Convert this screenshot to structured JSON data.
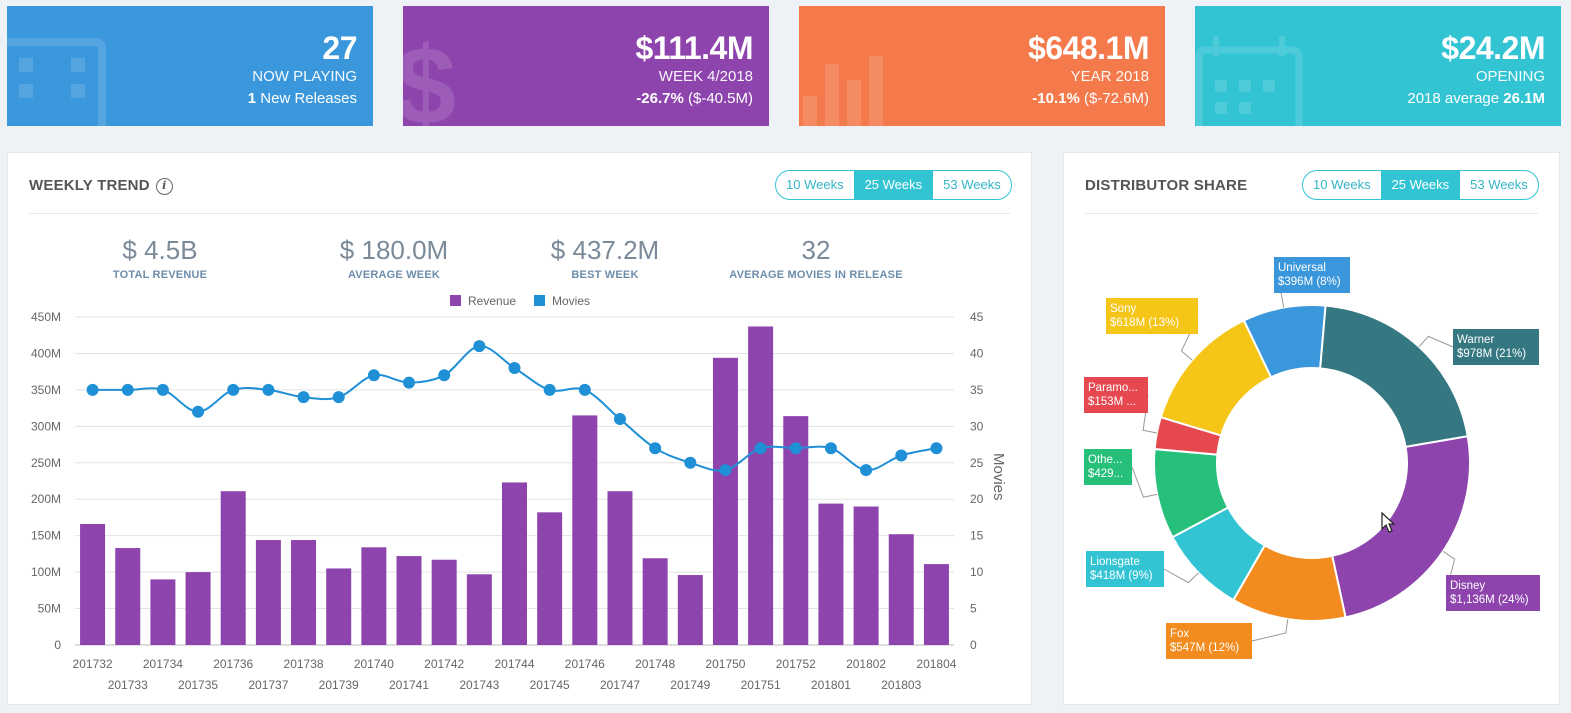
{
  "kpis": [
    {
      "value": "27",
      "label": "NOW PLAYING",
      "sub_bold": "1",
      "sub_text": " New Releases"
    },
    {
      "value": "$111.4M",
      "label": "WEEK 4/2018",
      "sub_bold": "-26.7%",
      "sub_text": " ($-40.5M)"
    },
    {
      "value": "$648.1M",
      "label": "YEAR 2018",
      "sub_bold": "-10.1%",
      "sub_text": " ($-72.6M)"
    },
    {
      "value": "$24.2M",
      "label": "OPENING",
      "sub_text": "2018 average ",
      "sub_bold": "26.1M"
    }
  ],
  "trend": {
    "title": "WEEKLY TREND",
    "info_glyph": "i",
    "ranges": [
      "10 Weeks",
      "25 Weeks",
      "53 Weeks"
    ],
    "active_range": "25 Weeks",
    "stats": [
      {
        "value": "$ 4.5B",
        "label": "TOTAL REVENUE"
      },
      {
        "value": "$ 180.0M",
        "label": "AVERAGE WEEK"
      },
      {
        "value": "$ 437.2M",
        "label": "BEST WEEK"
      },
      {
        "value": "32",
        "label": "AVERAGE MOVIES IN RELEASE"
      }
    ]
  },
  "share": {
    "title": "DISTRIBUTOR SHARE",
    "ranges": [
      "10 Weeks",
      "25 Weeks",
      "53 Weeks"
    ],
    "active_range": "25 Weeks"
  },
  "chart_data": [
    {
      "type": "bar",
      "title": "WEEKLY TREND",
      "categories": [
        "201732",
        "201733",
        "201734",
        "201735",
        "201736",
        "201737",
        "201738",
        "201739",
        "201740",
        "201741",
        "201742",
        "201743",
        "201744",
        "201745",
        "201746",
        "201747",
        "201748",
        "201749",
        "201750",
        "201751",
        "201752",
        "201801",
        "201802",
        "201803",
        "201804"
      ],
      "series": [
        {
          "name": "Revenue",
          "type": "bar",
          "axis": "left",
          "color": "#8e44ad",
          "values": [
            166,
            133,
            90,
            100,
            211,
            144,
            144,
            105,
            134,
            122,
            117,
            97,
            223,
            182,
            315,
            211,
            119,
            96,
            394,
            437,
            314,
            194,
            190,
            152,
            111
          ]
        },
        {
          "name": "Movies",
          "type": "line",
          "axis": "right",
          "color": "#1f8fd6",
          "values": [
            35,
            35,
            35,
            32,
            35,
            35,
            34,
            34,
            37,
            36,
            37,
            41,
            38,
            35,
            35,
            31,
            27,
            25,
            24,
            27,
            27,
            27,
            24,
            26,
            27
          ]
        }
      ],
      "ylim": [
        0,
        450
      ],
      "ylim_right": [
        0,
        45
      ],
      "yticks": [
        "0",
        "50M",
        "100M",
        "150M",
        "200M",
        "250M",
        "300M",
        "350M",
        "400M",
        "450M"
      ],
      "yticks_right": [
        "0",
        "5",
        "10",
        "15",
        "20",
        "25",
        "30",
        "35",
        "40",
        "45"
      ],
      "ylabel_right": "Movies",
      "legend": [
        "Revenue",
        "Movies"
      ],
      "legend_position": "top-center"
    },
    {
      "type": "pie",
      "title": "DISTRIBUTOR SHARE",
      "donut": true,
      "slices": [
        {
          "name": "Universal",
          "label": "Universal",
          "value_label": "$396M (8%)",
          "value": 396,
          "color": "#3a97dc"
        },
        {
          "name": "Warner",
          "label": "Warner",
          "value_label": "$978M (21%)",
          "value": 978,
          "color": "#357882"
        },
        {
          "name": "Disney",
          "label": "Disney",
          "value_label": "$1,136M (24%)",
          "value": 1136,
          "color": "#8e44ad"
        },
        {
          "name": "Fox",
          "label": "Fox",
          "value_label": "$547M (12%)",
          "value": 547,
          "color": "#f28c1f"
        },
        {
          "name": "Lionsgate",
          "label": "Lionsgate",
          "value_label": "$418M (9%)",
          "value": 418,
          "color": "#33c4d4"
        },
        {
          "name": "Other",
          "label": "Othe...",
          "value_label": "$429...",
          "value": 429,
          "color": "#26c07a"
        },
        {
          "name": "Paramount",
          "label": "Paramo...",
          "value_label": "$153M ...",
          "value": 153,
          "color": "#e5484f"
        },
        {
          "name": "Sony",
          "label": "Sony",
          "value_label": "$618M (13%)",
          "value": 618,
          "color": "#f5c518"
        }
      ]
    }
  ]
}
